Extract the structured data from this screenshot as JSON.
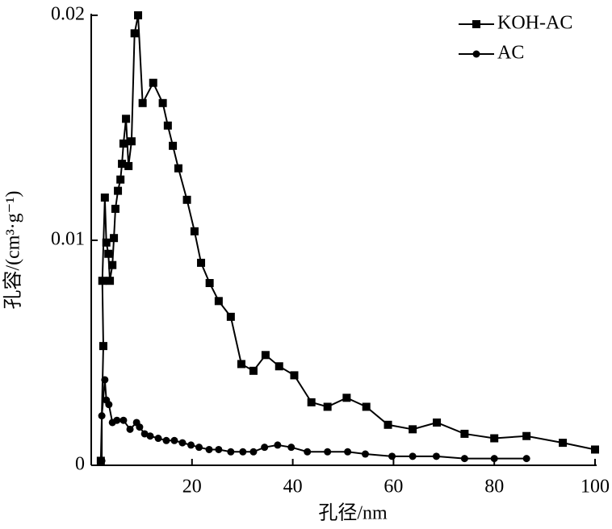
{
  "chart_data": {
    "type": "line",
    "xlabel": "孔径/nm",
    "ylabel": "孔容/(cm³·g⁻¹)",
    "xlim": [
      0,
      100
    ],
    "xticks": [
      20,
      40,
      60,
      80,
      100
    ],
    "ylim": [
      0,
      0.02
    ],
    "yticks": [
      0,
      0.01,
      0.02
    ],
    "legend": "upper right",
    "series": [
      {
        "name": "KOH-AC",
        "color": "#000000",
        "marker": "square",
        "x": [
          1.9,
          2.4,
          2.2,
          2.7,
          3.0,
          3.4,
          3.7,
          4.2,
          4.5,
          4.8,
          5.3,
          5.8,
          6.1,
          6.4,
          6.9,
          7.4,
          8.0,
          8.6,
          9.3,
          10.2,
          12.3,
          14.2,
          15.2,
          16.2,
          17.3,
          19.0,
          20.5,
          21.8,
          23.5,
          25.3,
          27.7,
          29.8,
          32.2,
          34.6,
          37.3,
          40.3,
          43.7,
          46.9,
          50.7,
          54.6,
          58.9,
          63.8,
          68.6,
          74.1,
          80.0,
          86.4,
          93.6,
          100
        ],
        "values": [
          0.0002,
          0.0053,
          0.0082,
          0.0119,
          0.0099,
          0.0094,
          0.0082,
          0.0089,
          0.0101,
          0.0114,
          0.0122,
          0.0127,
          0.0134,
          0.0143,
          0.0154,
          0.0133,
          0.0144,
          0.0192,
          0.02,
          0.0161,
          0.017,
          0.0161,
          0.0151,
          0.0142,
          0.0132,
          0.0118,
          0.0104,
          0.009,
          0.0081,
          0.0073,
          0.0066,
          0.0045,
          0.0042,
          0.0049,
          0.0044,
          0.004,
          0.0028,
          0.0026,
          0.003,
          0.0026,
          0.0018,
          0.0016,
          0.0019,
          0.0014,
          0.0012,
          0.0013,
          0.001,
          0.0007
        ]
      },
      {
        "name": "AC",
        "color": "#000000",
        "marker": "circle",
        "x": [
          2.1,
          2.1,
          2.7,
          3.0,
          3.5,
          4.2,
          5.1,
          6.4,
          7.7,
          9.0,
          9.6,
          10.6,
          11.7,
          13.3,
          14.9,
          16.5,
          18.1,
          19.8,
          21.4,
          23.4,
          25.3,
          27.7,
          30.1,
          32.2,
          34.4,
          37.0,
          39.7,
          42.9,
          46.9,
          50.9,
          54.4,
          59.7,
          63.8,
          68.5,
          74.1,
          80.0,
          86.4
        ],
        "values": [
          0.0002,
          0.0022,
          0.0038,
          0.0029,
          0.0027,
          0.0019,
          0.002,
          0.002,
          0.0016,
          0.0019,
          0.0017,
          0.0014,
          0.0013,
          0.0012,
          0.0011,
          0.0011,
          0.001,
          0.0009,
          0.0008,
          0.0007,
          0.0007,
          0.0006,
          0.0006,
          0.0006,
          0.0008,
          0.0009,
          0.0008,
          0.0006,
          0.0006,
          0.0006,
          0.0005,
          0.0004,
          0.0004,
          0.0004,
          0.0003,
          0.0003,
          0.0003
        ]
      }
    ]
  }
}
